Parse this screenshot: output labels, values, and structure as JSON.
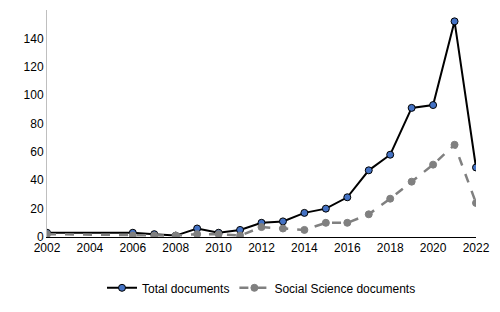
{
  "chart_data": {
    "type": "line",
    "x": [
      2002,
      2006,
      2007,
      2008,
      2009,
      2010,
      2011,
      2012,
      2013,
      2014,
      2015,
      2016,
      2017,
      2018,
      2019,
      2020,
      2021,
      2022
    ],
    "series": [
      {
        "name": "Total documents",
        "color": "#000000",
        "marker": "circle",
        "line_style": "solid",
        "values": [
          3,
          3,
          2,
          1,
          6,
          3,
          5,
          10,
          11,
          17,
          20,
          28,
          47,
          58,
          91,
          93,
          152,
          49
        ]
      },
      {
        "name": "Social Science documents",
        "color": "#808080",
        "marker": "circle",
        "line_style": "dash",
        "values": [
          2,
          1,
          1,
          1,
          2,
          2,
          1,
          7,
          6,
          5,
          10,
          10,
          16,
          27,
          39,
          51,
          65,
          24
        ]
      }
    ],
    "xlim": [
      2002,
      2022
    ],
    "xticks": [
      2002,
      2004,
      2006,
      2008,
      2010,
      2012,
      2014,
      2016,
      2018,
      2020,
      2022
    ],
    "ylim": [
      0,
      160
    ],
    "yticks": [
      0,
      20,
      40,
      60,
      80,
      100,
      120,
      140
    ],
    "grid": false,
    "legend": "bottom"
  }
}
